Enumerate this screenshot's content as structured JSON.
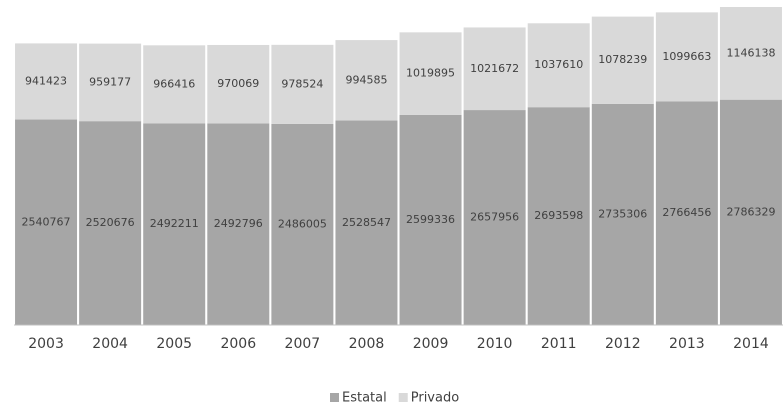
{
  "chart_data": {
    "type": "stacked_bar",
    "categories": [
      "2003",
      "2004",
      "2005",
      "2006",
      "2007",
      "2008",
      "2009",
      "2010",
      "2011",
      "2012",
      "2013",
      "2014"
    ],
    "series": [
      {
        "name": "Estatal",
        "color": "#a6a6a6",
        "values": [
          2540767,
          2520676,
          2492211,
          2492796,
          2486005,
          2528547,
          2599336,
          2657956,
          2693598,
          2735306,
          2766456,
          2786329
        ]
      },
      {
        "name": "Privado",
        "color": "#d9d9d9",
        "values": [
          941423,
          959177,
          966416,
          970069,
          978524,
          994585,
          1019895,
          1021672,
          1037610,
          1078239,
          1099663,
          1146138
        ]
      }
    ]
  }
}
